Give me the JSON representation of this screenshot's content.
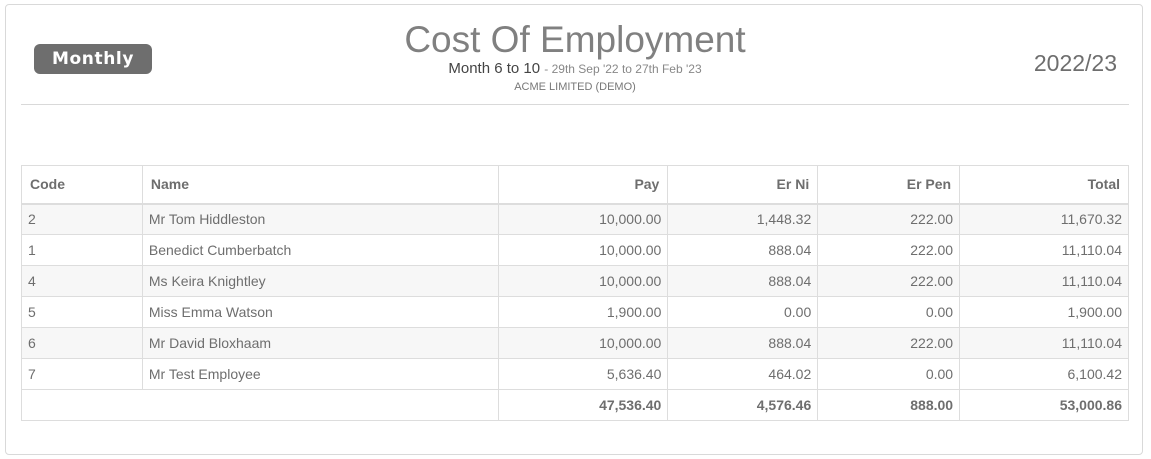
{
  "header": {
    "period_label": "Monthly",
    "title": "Cost Of Employment",
    "period_range": "Month 6 to 10",
    "date_range": "- 29th Sep '22 to 27th Feb '23",
    "company": "ACME LIMITED (DEMO)",
    "tax_year": "2022/23"
  },
  "table": {
    "columns": {
      "code": "Code",
      "name": "Name",
      "pay": "Pay",
      "er_ni": "Er Ni",
      "er_pen": "Er Pen",
      "total": "Total"
    },
    "rows": [
      {
        "code": "2",
        "name": "Mr Tom Hiddleston",
        "pay": "10,000.00",
        "er_ni": "1,448.32",
        "er_pen": "222.00",
        "total": "11,670.32"
      },
      {
        "code": "1",
        "name": "Benedict Cumberbatch",
        "pay": "10,000.00",
        "er_ni": "888.04",
        "er_pen": "222.00",
        "total": "11,110.04"
      },
      {
        "code": "4",
        "name": "Ms Keira Knightley",
        "pay": "10,000.00",
        "er_ni": "888.04",
        "er_pen": "222.00",
        "total": "11,110.04"
      },
      {
        "code": "5",
        "name": "Miss Emma Watson",
        "pay": "1,900.00",
        "er_ni": "0.00",
        "er_pen": "0.00",
        "total": "1,900.00"
      },
      {
        "code": "6",
        "name": "Mr David Bloxhaam",
        "pay": "10,000.00",
        "er_ni": "888.04",
        "er_pen": "222.00",
        "total": "11,110.04"
      },
      {
        "code": "7",
        "name": "Mr Test Employee",
        "pay": "5,636.40",
        "er_ni": "464.02",
        "er_pen": "0.00",
        "total": "6,100.42"
      }
    ],
    "totals": {
      "pay": "47,536.40",
      "er_ni": "4,576.46",
      "er_pen": "888.00",
      "total": "53,000.86"
    }
  },
  "colors": {
    "badge_background": "#6e6e6e",
    "title_text": "#808080",
    "border": "#dddddd",
    "row_stripe": "#f7f7f7"
  }
}
